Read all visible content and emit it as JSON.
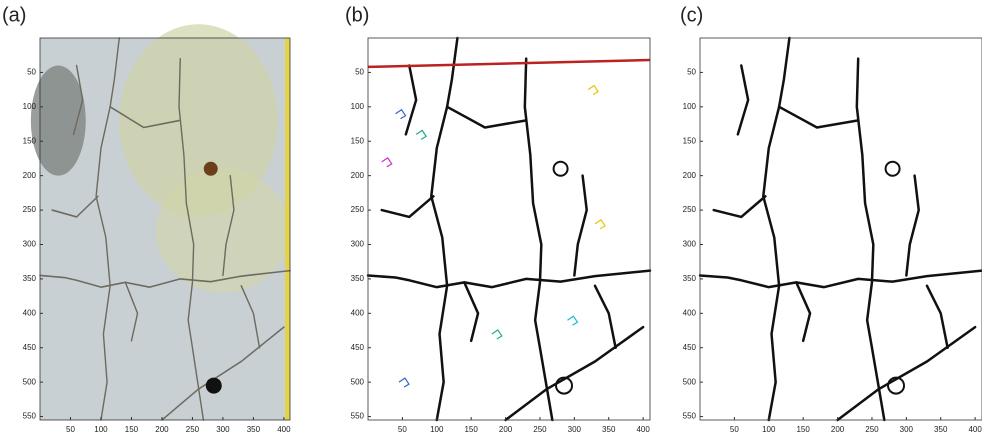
{
  "panels": [
    {
      "label": "(a)",
      "xlim": [
        0,
        410
      ],
      "ylim": [
        0,
        555
      ],
      "xticks": [
        50,
        100,
        150,
        200,
        250,
        300,
        350,
        400
      ],
      "yticks": [
        50,
        100,
        150,
        200,
        250,
        300,
        350,
        400,
        450,
        500,
        550
      ]
    },
    {
      "label": "(b)",
      "xlim": [
        0,
        410
      ],
      "ylim": [
        0,
        555
      ],
      "xticks": [
        50,
        100,
        150,
        200,
        250,
        300,
        350,
        400
      ],
      "yticks": [
        50,
        100,
        150,
        200,
        250,
        300,
        350,
        400,
        450,
        500,
        550
      ]
    },
    {
      "label": "(c)",
      "xlim": [
        0,
        410
      ],
      "ylim": [
        0,
        555
      ],
      "xticks": [
        50,
        100,
        150,
        200,
        250,
        300,
        350,
        400
      ],
      "yticks": [
        50,
        100,
        150,
        200,
        250,
        300,
        350,
        400,
        450,
        500,
        550
      ]
    }
  ]
}
